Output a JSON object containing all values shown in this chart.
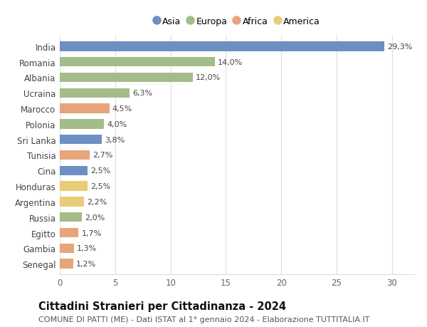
{
  "countries": [
    "India",
    "Romania",
    "Albania",
    "Ucraina",
    "Marocco",
    "Polonia",
    "Sri Lanka",
    "Tunisia",
    "Cina",
    "Honduras",
    "Argentina",
    "Russia",
    "Egitto",
    "Gambia",
    "Senegal"
  ],
  "values": [
    29.3,
    14.0,
    12.0,
    6.3,
    4.5,
    4.0,
    3.8,
    2.7,
    2.5,
    2.5,
    2.2,
    2.0,
    1.7,
    1.3,
    1.2
  ],
  "labels": [
    "29,3%",
    "14,0%",
    "12,0%",
    "6,3%",
    "4,5%",
    "4,0%",
    "3,8%",
    "2,7%",
    "2,5%",
    "2,5%",
    "2,2%",
    "2,0%",
    "1,7%",
    "1,3%",
    "1,2%"
  ],
  "continents": [
    "Asia",
    "Europa",
    "Europa",
    "Europa",
    "Africa",
    "Europa",
    "Asia",
    "Africa",
    "Asia",
    "America",
    "America",
    "Europa",
    "Africa",
    "Africa",
    "Africa"
  ],
  "colors": {
    "Asia": "#6e8fc2",
    "Europa": "#a4bb8a",
    "Africa": "#e8a47a",
    "America": "#e8cc78"
  },
  "legend_order": [
    "Asia",
    "Europa",
    "Africa",
    "America"
  ],
  "xlim": [
    0,
    32
  ],
  "xticks": [
    0,
    5,
    10,
    15,
    20,
    25,
    30
  ],
  "title": "Cittadini Stranieri per Cittadinanza - 2024",
  "subtitle": "COMUNE DI PATTI (ME) - Dati ISTAT al 1° gennaio 2024 - Elaborazione TUTTITALIA.IT",
  "bg_color": "#ffffff",
  "grid_color": "#dddddd",
  "bar_height": 0.62,
  "title_fontsize": 10.5,
  "subtitle_fontsize": 8,
  "tick_fontsize": 8.5,
  "label_fontsize": 8
}
